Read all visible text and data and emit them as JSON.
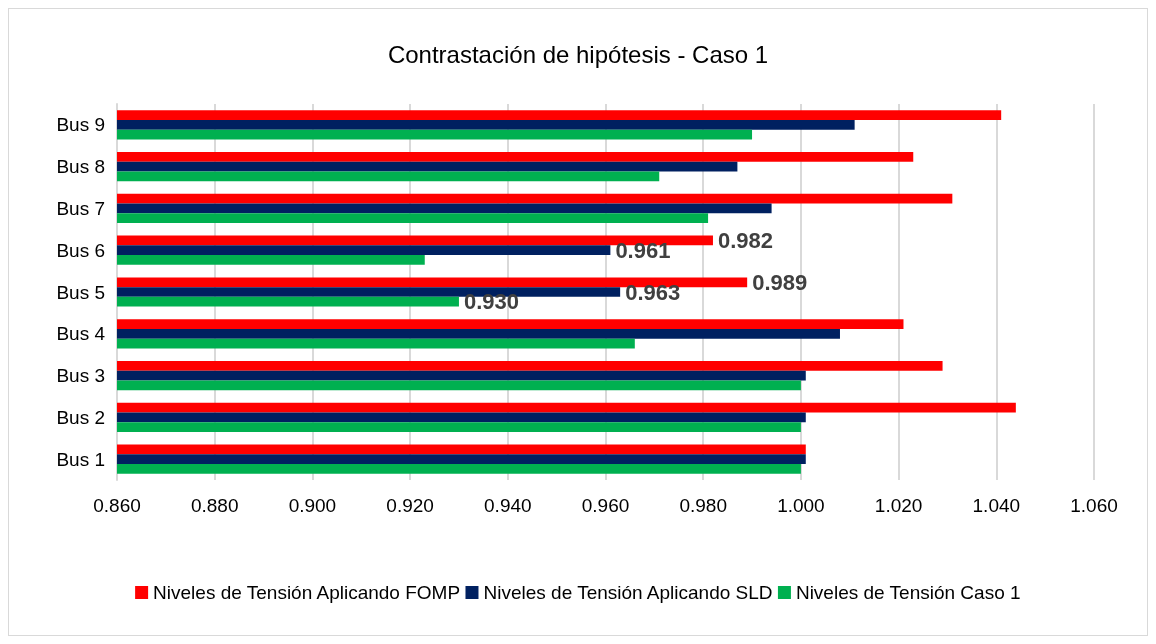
{
  "chart_data": {
    "type": "bar",
    "orientation": "horizontal",
    "title": "Contrastación de hipótesis - Caso 1",
    "categories": [
      "Bus 9",
      "Bus 8",
      "Bus 7",
      "Bus 6",
      "Bus 5",
      "Bus 4",
      "Bus 3",
      "Bus 2",
      "Bus 1"
    ],
    "series": [
      {
        "name": "Niveles de Tensión Aplicando FOMP",
        "color": "#ff0000",
        "values": [
          1.041,
          1.023,
          1.031,
          0.982,
          0.989,
          1.021,
          1.029,
          1.044,
          1.001
        ],
        "value_labels": [
          null,
          null,
          null,
          "0.982",
          "0.989",
          null,
          null,
          null,
          null
        ]
      },
      {
        "name": "Niveles de Tensión Aplicando SLD",
        "color": "#002060",
        "values": [
          1.011,
          0.987,
          0.994,
          0.961,
          0.963,
          1.008,
          1.001,
          1.001,
          1.001
        ],
        "value_labels": [
          null,
          null,
          null,
          "0.961",
          "0.963",
          null,
          null,
          null,
          null
        ]
      },
      {
        "name": "Niveles de Tensión Caso 1",
        "color": "#00b050",
        "values": [
          0.99,
          0.971,
          0.981,
          0.923,
          0.93,
          0.966,
          1.0,
          1.0,
          1.0
        ],
        "value_labels": [
          null,
          null,
          null,
          null,
          "0.930",
          null,
          null,
          null,
          null
        ]
      }
    ],
    "xlim": [
      0.86,
      1.06
    ],
    "xticks": [
      {
        "value": 0.86,
        "label": "0.860"
      },
      {
        "value": 0.88,
        "label": "0.880"
      },
      {
        "value": 0.9,
        "label": "0.900"
      },
      {
        "value": 0.92,
        "label": "0.920"
      },
      {
        "value": 0.94,
        "label": "0.940"
      },
      {
        "value": 0.96,
        "label": "0.960"
      },
      {
        "value": 0.98,
        "label": "0.980"
      },
      {
        "value": 1.0,
        "label": "1.000"
      },
      {
        "value": 1.02,
        "label": "1.020"
      },
      {
        "value": 1.04,
        "label": "1.040"
      },
      {
        "value": 1.06,
        "label": "1.060"
      }
    ],
    "grid": "x",
    "legend": "bottom"
  }
}
